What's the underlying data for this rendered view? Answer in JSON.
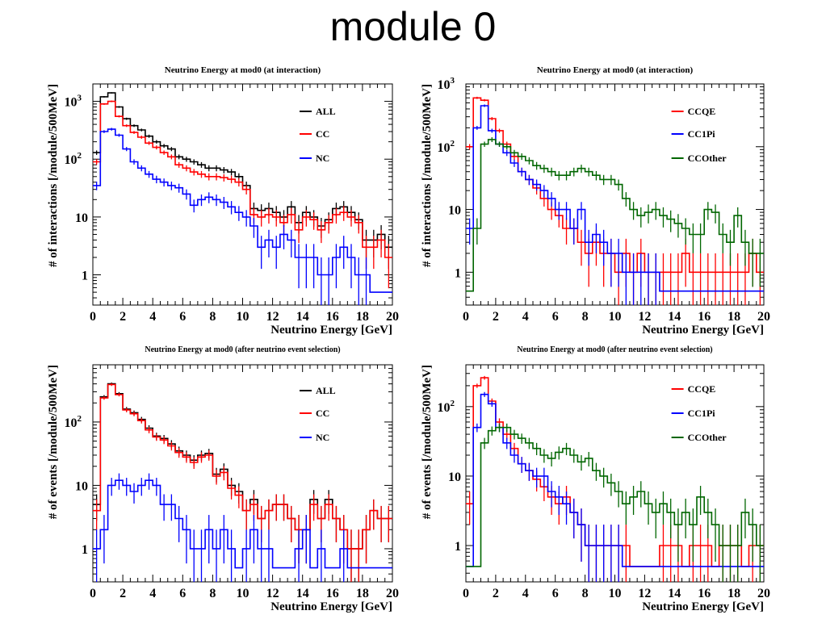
{
  "page_title": "module 0",
  "chart_data": [
    {
      "type": "histogram",
      "title": "Neutrino Energy at mod0 (at interaction)",
      "xlabel": "Neutrino Energy [GeV]",
      "ylabel": "# of interactions [/module/500MeV]",
      "xlim": [
        0,
        20
      ],
      "ylim": [
        0.3,
        2000
      ],
      "yscale": "log",
      "bin_width": 0.5,
      "x_ticks": [
        "0",
        "2",
        "4",
        "6",
        "8",
        "10",
        "12",
        "14",
        "16",
        "18",
        "20"
      ],
      "y_ticks": [
        {
          "value": 1,
          "label": "1"
        },
        {
          "value": 10,
          "label": "10"
        },
        {
          "value": 100,
          "label": "10",
          "sup": "2"
        },
        {
          "value": 1000,
          "label": "10",
          "sup": "3"
        }
      ],
      "legend": "top-right",
      "series": [
        {
          "name": "ALL",
          "color": "#000000",
          "values": [
            130,
            1200,
            1400,
            800,
            500,
            380,
            320,
            250,
            200,
            170,
            150,
            110,
            100,
            90,
            80,
            70,
            70,
            65,
            60,
            50,
            35,
            14,
            13,
            14,
            12,
            10,
            15,
            8,
            12,
            10,
            7,
            9,
            14,
            15,
            12,
            9,
            4,
            4,
            5,
            3
          ]
        },
        {
          "name": "CC",
          "color": "#ff0000",
          "values": [
            90,
            900,
            1000,
            550,
            380,
            290,
            240,
            190,
            160,
            130,
            110,
            80,
            70,
            60,
            55,
            50,
            50,
            48,
            45,
            40,
            30,
            11,
            10,
            11,
            10,
            8,
            11,
            6,
            10,
            9,
            6,
            8,
            11,
            12,
            10,
            8,
            3,
            3,
            4,
            2
          ]
        },
        {
          "name": "NC",
          "color": "#0000ff",
          "values": [
            35,
            300,
            330,
            260,
            150,
            90,
            70,
            55,
            45,
            40,
            35,
            32,
            25,
            16,
            20,
            22,
            20,
            18,
            15,
            12,
            10,
            7,
            3,
            4,
            3,
            5,
            4,
            2,
            2,
            2,
            1,
            1,
            2,
            3,
            2,
            1,
            1,
            0.5,
            0.5,
            0.5
          ]
        }
      ]
    },
    {
      "type": "histogram",
      "title": "Neutrino Energy at mod0 (at interaction)",
      "xlabel": "Neutrino Energy [GeV]",
      "ylabel": "# of interactions [/module/500MeV]",
      "xlim": [
        0,
        20
      ],
      "ylim": [
        0.3,
        1000
      ],
      "yscale": "log",
      "bin_width": 0.5,
      "x_ticks": [
        "0",
        "2",
        "4",
        "6",
        "8",
        "10",
        "12",
        "14",
        "16",
        "18",
        "20"
      ],
      "y_ticks": [
        {
          "value": 1,
          "label": "1"
        },
        {
          "value": 10,
          "label": "10"
        },
        {
          "value": 100,
          "label": "10",
          "sup": "2"
        },
        {
          "value": 1000,
          "label": "10",
          "sup": "3"
        }
      ],
      "legend": "top-right",
      "series": [
        {
          "name": "CCQE",
          "color": "#ff0000",
          "values": [
            100,
            600,
            550,
            280,
            180,
            110,
            70,
            40,
            30,
            22,
            15,
            10,
            8,
            5,
            5,
            3,
            2,
            3,
            2,
            2,
            1,
            2,
            1,
            2,
            1,
            1,
            1,
            1,
            1,
            2,
            1,
            1,
            1,
            1,
            1,
            1,
            1,
            1,
            2,
            1
          ]
        },
        {
          "name": "CC1Pi",
          "color": "#0000ff",
          "values": [
            5,
            200,
            450,
            180,
            110,
            80,
            55,
            40,
            30,
            25,
            20,
            15,
            10,
            10,
            5,
            10,
            3,
            4,
            3,
            2,
            2,
            1,
            1,
            1,
            1,
            1,
            0.5,
            0.5,
            0.5,
            0.5,
            0.5,
            0.5,
            0.5,
            0.5,
            0.5,
            0.5,
            0.5,
            0.5,
            0.5,
            0.5
          ]
        },
        {
          "name": "CCOther",
          "color": "#006600",
          "values": [
            0.5,
            5,
            110,
            130,
            110,
            100,
            80,
            70,
            60,
            50,
            45,
            40,
            35,
            35,
            40,
            45,
            40,
            35,
            30,
            30,
            25,
            15,
            10,
            8,
            9,
            10,
            8,
            7,
            6,
            5,
            4,
            4,
            10,
            9,
            4,
            3,
            8,
            3,
            2,
            2
          ]
        }
      ]
    },
    {
      "type": "histogram",
      "title": "Neutrino Energy at mod0 (after neutrino event selection)",
      "xlabel": "Neutrino Energy [GeV]",
      "ylabel": "# of events [/module/500MeV]",
      "xlim": [
        0,
        20
      ],
      "ylim": [
        0.3,
        800
      ],
      "yscale": "log",
      "bin_width": 0.5,
      "x_ticks": [
        "0",
        "2",
        "4",
        "6",
        "8",
        "10",
        "12",
        "14",
        "16",
        "18",
        "20"
      ],
      "y_ticks": [
        {
          "value": 1,
          "label": "1"
        },
        {
          "value": 10,
          "label": "10"
        },
        {
          "value": 100,
          "label": "10",
          "sup": "2"
        }
      ],
      "legend": "top-right",
      "series": [
        {
          "name": "ALL",
          "color": "#000000",
          "values": [
            5,
            250,
            400,
            280,
            160,
            140,
            110,
            80,
            60,
            55,
            45,
            35,
            30,
            25,
            30,
            32,
            15,
            18,
            10,
            8,
            4,
            6,
            3,
            4,
            5,
            5,
            3,
            2,
            2,
            6,
            3,
            6,
            3,
            2,
            1,
            1,
            2,
            4,
            3,
            3
          ]
        },
        {
          "name": "CC",
          "color": "#ff0000",
          "values": [
            4,
            240,
            390,
            270,
            155,
            135,
            105,
            75,
            58,
            52,
            42,
            33,
            28,
            23,
            28,
            30,
            14,
            16,
            9,
            7,
            4,
            5,
            3,
            4,
            5,
            5,
            3,
            2,
            2,
            5,
            3,
            5,
            3,
            2,
            1,
            1,
            2,
            4,
            3,
            3
          ]
        },
        {
          "name": "NC",
          "color": "#0000ff",
          "values": [
            1,
            2,
            10,
            12,
            10,
            8,
            10,
            12,
            10,
            5,
            5,
            3,
            2,
            1,
            1,
            2,
            1,
            2,
            1,
            0.5,
            1,
            2,
            1,
            1,
            0.5,
            0.5,
            0.5,
            1,
            2,
            0.5,
            1,
            0.5,
            0.5,
            1,
            0.5,
            0.5,
            0.5,
            0.5,
            0.5,
            0.5
          ]
        }
      ]
    },
    {
      "type": "histogram",
      "title": "Neutrino Energy at mod0 (after neutrino event selection)",
      "xlabel": "Neutrino Energy [GeV]",
      "ylabel": "# of events [/module/500MeV]",
      "xlim": [
        0,
        20
      ],
      "ylim": [
        0.3,
        400
      ],
      "yscale": "log",
      "bin_width": 0.5,
      "x_ticks": [
        "0",
        "2",
        "4",
        "6",
        "8",
        "10",
        "12",
        "14",
        "16",
        "18",
        "20"
      ],
      "y_ticks": [
        {
          "value": 1,
          "label": "1"
        },
        {
          "value": 10,
          "label": "10"
        },
        {
          "value": 100,
          "label": "10",
          "sup": "2"
        }
      ],
      "legend": "top-right",
      "series": [
        {
          "name": "CCQE",
          "color": "#ff0000",
          "values": [
            4,
            200,
            260,
            120,
            60,
            40,
            25,
            15,
            12,
            9,
            7,
            5,
            4,
            5,
            3,
            2,
            1,
            1,
            1,
            1,
            1,
            1,
            0.5,
            0.5,
            0.5,
            0.5,
            1,
            1,
            1,
            0.5,
            1,
            1,
            1,
            0.5,
            1,
            1,
            1,
            0.5,
            1,
            1
          ]
        },
        {
          "name": "CC1Pi",
          "color": "#0000ff",
          "values": [
            0.5,
            50,
            150,
            110,
            50,
            30,
            20,
            15,
            12,
            10,
            10,
            6,
            5,
            4,
            3,
            2,
            1,
            1,
            1,
            1,
            1,
            0.5,
            0.5,
            0.5,
            0.5,
            0.5,
            0.5,
            0.5,
            0.5,
            0.5,
            0.5,
            0.5,
            0.5,
            0.5,
            0.5,
            0.5,
            0.5,
            0.5,
            0.5,
            0.5
          ]
        },
        {
          "name": "CCOther",
          "color": "#006600",
          "values": [
            0.5,
            0.5,
            30,
            45,
            50,
            50,
            40,
            35,
            30,
            25,
            20,
            18,
            22,
            25,
            20,
            16,
            18,
            12,
            10,
            8,
            6,
            4,
            5,
            6,
            4,
            3,
            4,
            3,
            2,
            3,
            2,
            5,
            3,
            2,
            1,
            1,
            1,
            3,
            2,
            1
          ]
        }
      ]
    }
  ]
}
